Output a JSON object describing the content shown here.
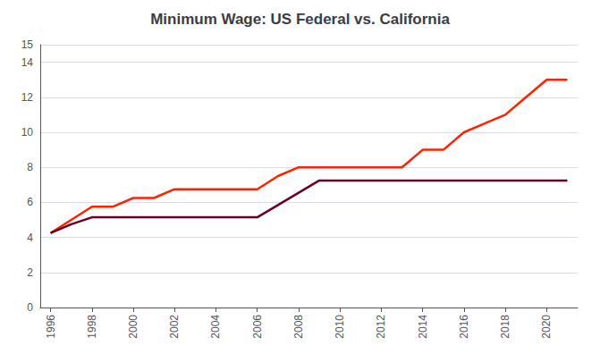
{
  "chart_data": {
    "type": "line",
    "title": "Minimum Wage: US Federal vs. California",
    "x": [
      1996,
      1997,
      1998,
      1999,
      2000,
      2001,
      2002,
      2003,
      2004,
      2005,
      2006,
      2007,
      2008,
      2009,
      2010,
      2011,
      2012,
      2013,
      2014,
      2015,
      2016,
      2017,
      2018,
      2019,
      2020,
      2021
    ],
    "series": [
      {
        "color": "#FF2200",
        "values": [
          4.25,
          5.0,
          5.75,
          5.75,
          6.25,
          6.25,
          6.75,
          6.75,
          6.75,
          6.75,
          6.75,
          7.5,
          8.0,
          8.0,
          8.0,
          8.0,
          8.0,
          8.0,
          9.0,
          9.0,
          10.0,
          10.5,
          11.0,
          12.0,
          13.0,
          13.0
        ]
      },
      {
        "color": "#6B0020",
        "values": [
          4.25,
          4.75,
          5.15,
          5.15,
          5.15,
          5.15,
          5.15,
          5.15,
          5.15,
          5.15,
          5.15,
          5.85,
          6.55,
          7.25,
          7.25,
          7.25,
          7.25,
          7.25,
          7.25,
          7.25,
          7.25,
          7.25,
          7.25,
          7.25,
          7.25,
          7.25
        ]
      }
    ],
    "xlim": [
      1995.5,
      2021.5
    ],
    "xticks": [
      1996,
      1998,
      2000,
      2002,
      2004,
      2006,
      2008,
      2010,
      2012,
      2014,
      2016,
      2018,
      2020
    ],
    "ylim": [
      0,
      15
    ],
    "yticks": [
      0,
      2,
      4,
      6,
      8,
      10,
      12,
      14
    ],
    "grid": true
  }
}
